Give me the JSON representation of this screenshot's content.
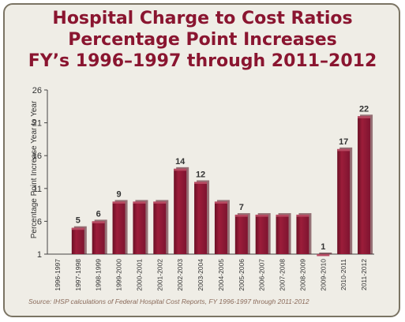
{
  "chart_data": {
    "type": "bar",
    "title": [
      "Hospital Charge to Cost Ratios",
      "Percentage Point Increases",
      "FY’s 1996–1997 through 2011–2012"
    ],
    "ylabel": "Percentage Point Increase Year to Year",
    "xlabel": "",
    "ylim": [
      1,
      26
    ],
    "yticks": [
      1,
      6,
      11,
      16,
      21,
      26
    ],
    "categories": [
      "1996-1997",
      "1997-1998",
      "1998-1999",
      "1999-2000",
      "2000-2001",
      "2001-2002",
      "2002-2003",
      "2003-2004",
      "2004-2005",
      "2005-2006",
      "2006-2007",
      "2007-2008",
      "2008-2009",
      "2009-2010",
      "2010-2011",
      "2011-2012"
    ],
    "values": [
      null,
      5,
      6,
      9,
      9,
      9,
      14,
      12,
      9,
      7,
      7,
      7,
      7,
      1,
      17,
      22
    ],
    "data_labels": [
      "",
      "5",
      "6",
      "9",
      "",
      "",
      "14",
      "12",
      "",
      "7",
      "",
      "",
      "",
      "1",
      "17",
      "22"
    ],
    "bar_color": "#8a1530",
    "grid": false,
    "source": "Source: IHSP calculations of Federal Hospital Cost Reports, FY 1996-1997 through 2011-2012"
  }
}
